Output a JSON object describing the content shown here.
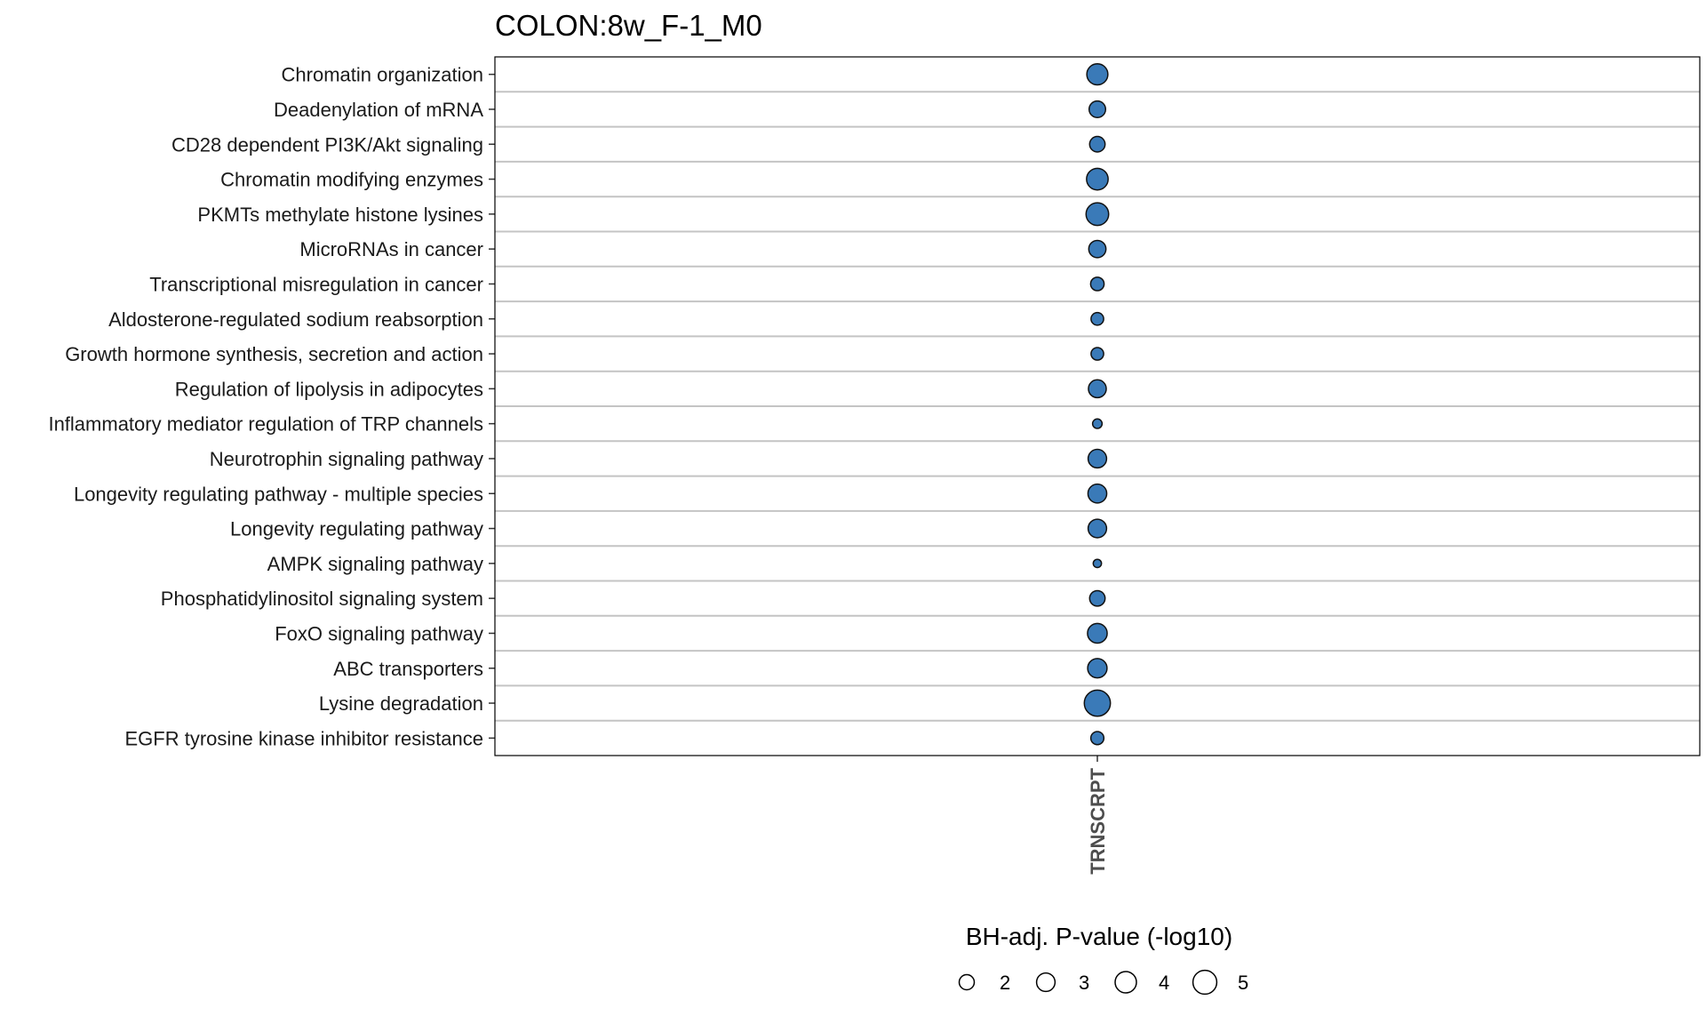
{
  "chart_data": {
    "type": "scatter",
    "title": "COLON:8w_F-1_M0",
    "x_categories": [
      "TRNSCRPT"
    ],
    "y_categories": [
      "Chromatin organization",
      "Deadenylation of mRNA",
      "CD28 dependent PI3K/Akt signaling",
      "Chromatin modifying enzymes",
      "PKMTs methylate histone lysines",
      "MicroRNAs in cancer",
      "Transcriptional misregulation in cancer",
      "Aldosterone-regulated sodium reabsorption",
      "Growth hormone synthesis, secretion and action",
      "Regulation of lipolysis in adipocytes",
      "Inflammatory mediator regulation of TRP channels",
      "Neurotrophin signaling pathway",
      "Longevity regulating pathway - multiple species",
      "Longevity regulating pathway",
      "AMPK signaling pathway",
      "Phosphatidylinositol signaling system",
      "FoxO signaling pathway",
      "ABC transporters",
      "Lysine degradation",
      "EGFR tyrosine kinase inhibitor resistance"
    ],
    "points": [
      {
        "x": "TRNSCRPT",
        "y": "Chromatin organization",
        "value": 3.9
      },
      {
        "x": "TRNSCRPT",
        "y": "Deadenylation of mRNA",
        "value": 2.4
      },
      {
        "x": "TRNSCRPT",
        "y": "CD28 dependent PI3K/Akt signaling",
        "value": 2.1
      },
      {
        "x": "TRNSCRPT",
        "y": "Chromatin modifying enzymes",
        "value": 4.1
      },
      {
        "x": "TRNSCRPT",
        "y": "PKMTs methylate histone lysines",
        "value": 4.5
      },
      {
        "x": "TRNSCRPT",
        "y": "MicroRNAs in cancer",
        "value": 2.6
      },
      {
        "x": "TRNSCRPT",
        "y": "Transcriptional misregulation in cancer",
        "value": 1.6
      },
      {
        "x": "TRNSCRPT",
        "y": "Aldosterone-regulated sodium reabsorption",
        "value": 1.4
      },
      {
        "x": "TRNSCRPT",
        "y": "Growth hormone synthesis, secretion and action",
        "value": 1.4
      },
      {
        "x": "TRNSCRPT",
        "y": "Regulation of lipolysis in adipocytes",
        "value": 2.8
      },
      {
        "x": "TRNSCRPT",
        "y": "Inflammatory mediator regulation of TRP channels",
        "value": 0.8
      },
      {
        "x": "TRNSCRPT",
        "y": "Neurotrophin signaling pathway",
        "value": 3.0
      },
      {
        "x": "TRNSCRPT",
        "y": "Longevity regulating pathway - multiple species",
        "value": 3.1
      },
      {
        "x": "TRNSCRPT",
        "y": "Longevity regulating pathway",
        "value": 3.0
      },
      {
        "x": "TRNSCRPT",
        "y": "AMPK signaling pathway",
        "value": 0.6
      },
      {
        "x": "TRNSCRPT",
        "y": "Phosphatidylinositol signaling system",
        "value": 2.1
      },
      {
        "x": "TRNSCRPT",
        "y": "FoxO signaling pathway",
        "value": 3.4
      },
      {
        "x": "TRNSCRPT",
        "y": "ABC transporters",
        "value": 3.3
      },
      {
        "x": "TRNSCRPT",
        "y": "Lysine degradation",
        "value": 6.0
      },
      {
        "x": "TRNSCRPT",
        "y": "EGFR tyrosine kinase inhibitor resistance",
        "value": 1.5
      }
    ],
    "size_legend": {
      "title": "BH-adj. P-value (-log10)",
      "values": [
        2,
        3,
        4,
        5
      ],
      "labels": [
        "2",
        "3",
        "4",
        "5"
      ]
    },
    "point_color": "#3a7ab8",
    "grid": true,
    "legend_position": "bottom"
  }
}
